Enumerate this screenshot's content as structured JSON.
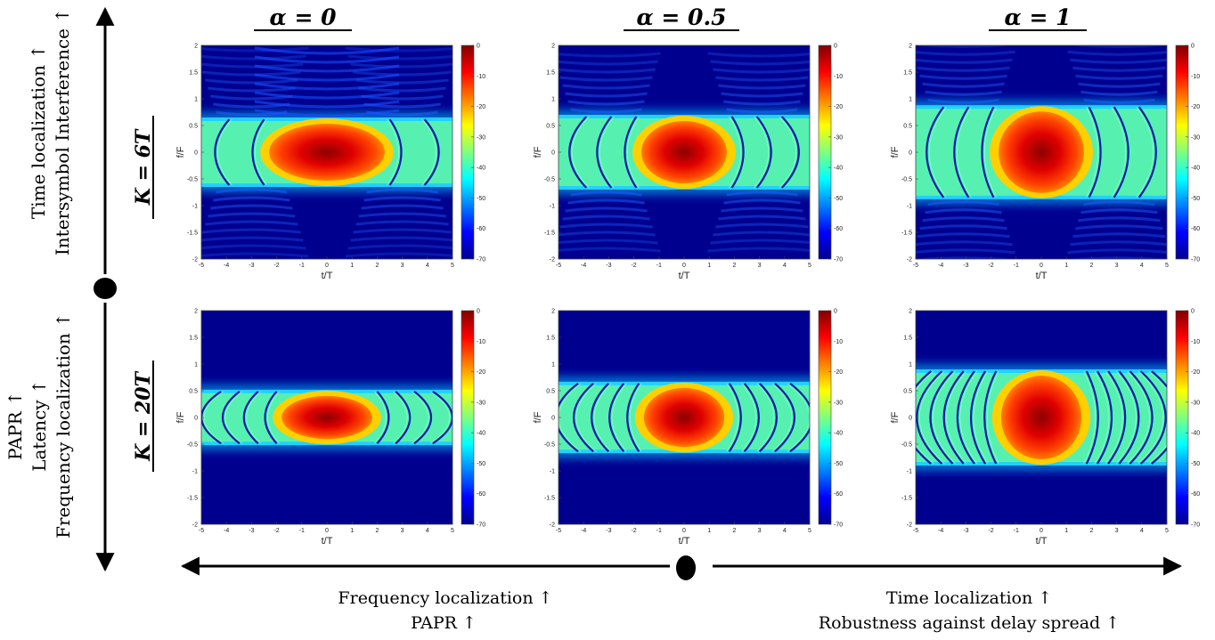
{
  "column_headers": [
    "α = 0",
    "α = 0.5",
    "α = 1"
  ],
  "row_headers": [
    "K = 6T",
    "K = 20T"
  ],
  "left_arrow_upper_text": [
    "Time localization ↑",
    "Intersymbol Interference ↑"
  ],
  "left_arrow_lower_text": [
    "PAPR ↑",
    "Latency ↑",
    "Frequency localization ↑"
  ],
  "bottom_left_text": [
    "Frequency localization ↑",
    "PAPR  ↑"
  ],
  "bottom_right_text": [
    "Time localization ↑",
    "Robustness against delay spread ↑"
  ],
  "chart_data": [
    {
      "type": "heatmap",
      "row": "K = 6T",
      "column": "α = 0",
      "xlabel": "t/T",
      "ylabel": "f/F",
      "xlim": [
        -5,
        5
      ],
      "ylim": [
        -2,
        2
      ],
      "xticks": [
        -5,
        -4,
        -3,
        -2,
        -1,
        0,
        1,
        2,
        3,
        4,
        5
      ],
      "yticks": [
        -2,
        -1.5,
        -1,
        -0.5,
        0,
        0.5,
        1,
        1.5,
        2
      ],
      "colorbar_ticks": [
        0,
        -10,
        -20,
        -30,
        -40,
        -50,
        -60,
        -70
      ],
      "band_halfwidth_f": 0.65,
      "ripple_count": 2
    },
    {
      "type": "heatmap",
      "row": "K = 6T",
      "column": "α = 0.5",
      "xlabel": "t/T",
      "ylabel": "f/F",
      "xlim": [
        -5,
        5
      ],
      "ylim": [
        -2,
        2
      ],
      "xticks": [
        -5,
        -4,
        -3,
        -2,
        -1,
        0,
        1,
        2,
        3,
        4,
        5
      ],
      "yticks": [
        -2,
        -1.5,
        -1,
        -0.5,
        0,
        0.5,
        1,
        1.5,
        2
      ],
      "colorbar_ticks": [
        0,
        -10,
        -20,
        -30,
        -40,
        -50,
        -60,
        -70
      ],
      "band_halfwidth_f": 0.7,
      "ripple_count": 3
    },
    {
      "type": "heatmap",
      "row": "K = 6T",
      "column": "α = 1",
      "xlabel": "t/T",
      "ylabel": "f/F",
      "xlim": [
        -5,
        5
      ],
      "ylim": [
        -2,
        2
      ],
      "xticks": [
        -5,
        -4,
        -3,
        -2,
        -1,
        0,
        1,
        2,
        3,
        4,
        5
      ],
      "yticks": [
        -2,
        -1.5,
        -1,
        -0.5,
        0,
        0.5,
        1,
        1.5,
        2
      ],
      "colorbar_ticks": [
        0,
        -10,
        -20,
        -30,
        -40,
        -50,
        -60,
        -70
      ],
      "band_halfwidth_f": 0.88,
      "ripple_count": 3
    },
    {
      "type": "heatmap",
      "row": "K = 20T",
      "column": "α = 0",
      "xlabel": "t/T",
      "ylabel": "f/F",
      "xlim": [
        -5,
        5
      ],
      "ylim": [
        -2,
        2
      ],
      "xticks": [
        -5,
        -4,
        -3,
        -2,
        -1,
        0,
        1,
        2,
        3,
        4,
        5
      ],
      "yticks": [
        -2,
        -1.5,
        -1,
        -0.5,
        0,
        0.5,
        1,
        1.5,
        2
      ],
      "colorbar_ticks": [
        0,
        -10,
        -20,
        -30,
        -40,
        -50,
        -60,
        -70
      ],
      "band_halfwidth_f": 0.52,
      "ripple_count": 4
    },
    {
      "type": "heatmap",
      "row": "K = 20T",
      "column": "α = 0.5",
      "xlabel": "t/T",
      "ylabel": "f/F",
      "xlim": [
        -5,
        5
      ],
      "ylim": [
        -2,
        2
      ],
      "xticks": [
        -5,
        -4,
        -3,
        -2,
        -1,
        0,
        1,
        2,
        3,
        4,
        5
      ],
      "yticks": [
        -2,
        -1.5,
        -1,
        -0.5,
        0,
        0.5,
        1,
        1.5,
        2
      ],
      "colorbar_ticks": [
        0,
        -10,
        -20,
        -30,
        -40,
        -50,
        -60,
        -70
      ],
      "band_halfwidth_f": 0.67,
      "ripple_count": 5
    },
    {
      "type": "heatmap",
      "row": "K = 20T",
      "column": "α = 1",
      "xlabel": "t/T",
      "ylabel": "f/F",
      "xlim": [
        -5,
        5
      ],
      "ylim": [
        -2,
        2
      ],
      "xticks": [
        -5,
        -4,
        -3,
        -2,
        -1,
        0,
        1,
        2,
        3,
        4,
        5
      ],
      "yticks": [
        -2,
        -1.5,
        -1,
        -0.5,
        0,
        0.5,
        1,
        1.5,
        2
      ],
      "colorbar_ticks": [
        0,
        -10,
        -20,
        -30,
        -40,
        -50,
        -60,
        -70
      ],
      "band_halfwidth_f": 0.9,
      "ripple_count": 7
    }
  ],
  "colors": {
    "min": "#00008f",
    "max": "#800000",
    "arrow": "#000000"
  }
}
